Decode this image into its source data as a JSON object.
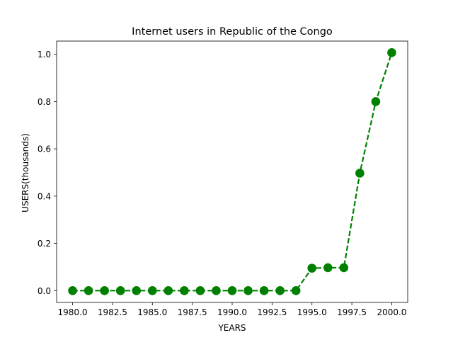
{
  "chart_data": {
    "type": "line",
    "title": "Internet users in Republic of the Congo",
    "xlabel": "YEARS",
    "ylabel": "USERS(thousands)",
    "xlim": [
      1979,
      2001
    ],
    "ylim": [
      -0.05,
      1.056
    ],
    "xticks": [
      {
        "value": 1980.0,
        "label": "1980.0"
      },
      {
        "value": 1982.5,
        "label": "1982.5"
      },
      {
        "value": 1985.0,
        "label": "1985.0"
      },
      {
        "value": 1987.5,
        "label": "1987.5"
      },
      {
        "value": 1990.0,
        "label": "1990.0"
      },
      {
        "value": 1992.5,
        "label": "1992.5"
      },
      {
        "value": 1995.0,
        "label": "1995.0"
      },
      {
        "value": 1997.5,
        "label": "1997.5"
      },
      {
        "value": 2000.0,
        "label": "2000.0"
      }
    ],
    "yticks": [
      {
        "value": 0.0,
        "label": "0.0"
      },
      {
        "value": 0.2,
        "label": "0.2"
      },
      {
        "value": 0.4,
        "label": "0.4"
      },
      {
        "value": 0.6,
        "label": "0.6"
      },
      {
        "value": 0.8,
        "label": "0.8"
      },
      {
        "value": 1.0,
        "label": "1.0"
      }
    ],
    "grid": false,
    "series": [
      {
        "color": "#008000",
        "line_style": "dashed",
        "marker": "circle",
        "x": [
          1980,
          1981,
          1982,
          1983,
          1984,
          1985,
          1986,
          1987,
          1988,
          1989,
          1990,
          1991,
          1992,
          1993,
          1994,
          1995,
          1996,
          1997,
          1998,
          1999,
          2000
        ],
        "y": [
          0,
          0,
          0,
          0,
          0,
          0,
          0,
          0,
          0,
          0,
          0,
          0,
          0,
          0,
          0,
          0.095,
          0.097,
          0.097,
          0.497,
          0.8,
          1.007
        ]
      }
    ]
  }
}
